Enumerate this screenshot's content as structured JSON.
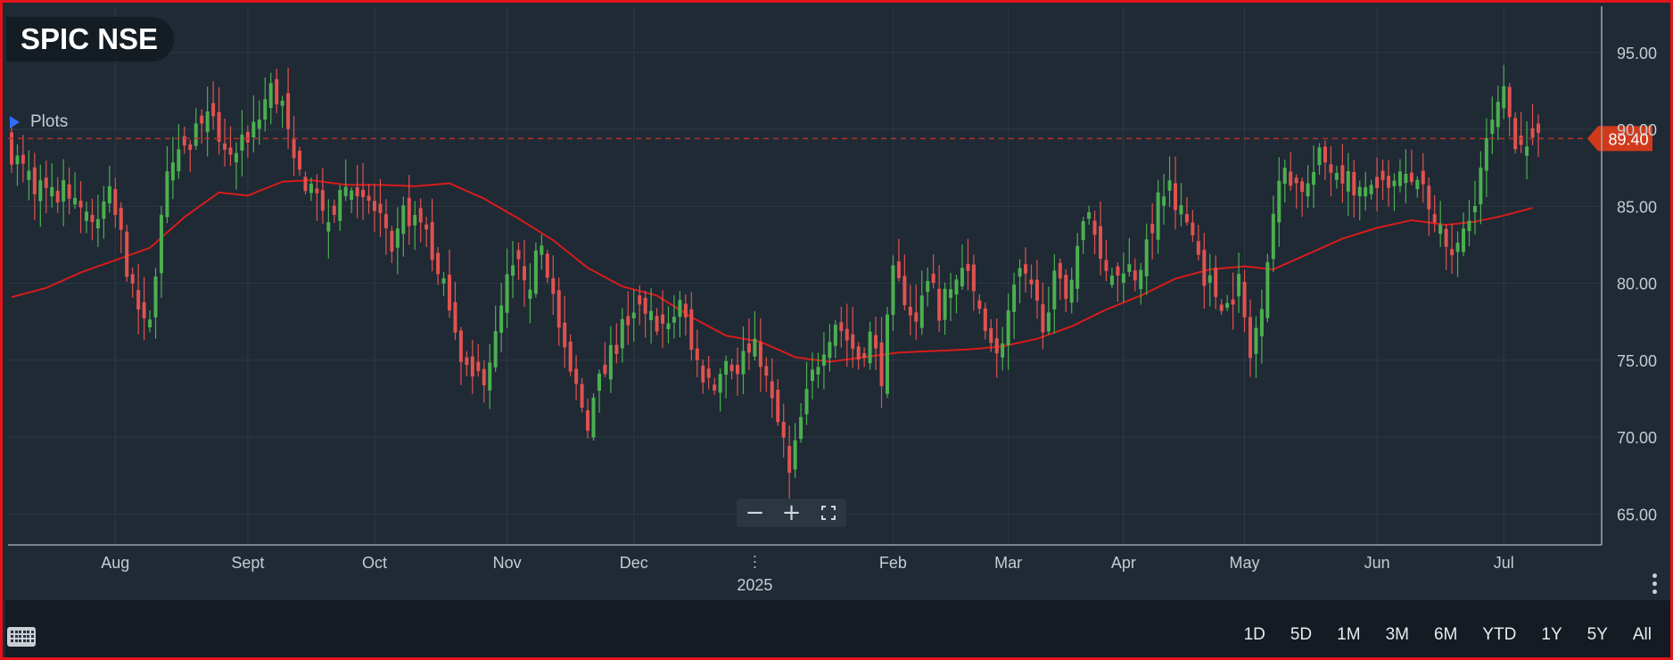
{
  "header": {
    "title": "SPIC NSE"
  },
  "plots_toggle": {
    "label": "Plots"
  },
  "zoom_controls": {
    "zoom_out": "−",
    "zoom_in": "+",
    "fullscreen_icon": "fullscreen-icon"
  },
  "range_buttons": [
    "1D",
    "5D",
    "1M",
    "3M",
    "6M",
    "YTD",
    "1Y",
    "5Y",
    "All"
  ],
  "colors": {
    "background": "#1f2a35",
    "up": "#4caf50",
    "down": "#e0524f",
    "moving_average": "#d81b1b",
    "last_price_line": "#b8302a",
    "last_price_badge": "#d03a1a",
    "grid": "#2d3945"
  },
  "chart_data": {
    "type": "candlestick",
    "ylim": [
      63,
      98
    ],
    "y_ticks": [
      65,
      70,
      75,
      80,
      85,
      90,
      95
    ],
    "y_tick_labels": [
      "65.00",
      "70.00",
      "75.00",
      "80.00",
      "85.00",
      "90.00",
      "95.00"
    ],
    "x_ticks": [
      {
        "label": "Aug",
        "index": 18
      },
      {
        "label": "Sept",
        "index": 41
      },
      {
        "label": "Oct",
        "index": 63
      },
      {
        "label": "Nov",
        "index": 86
      },
      {
        "label": "Dec",
        "index": 108
      },
      {
        "label": "2025",
        "index": 129,
        "year": true
      },
      {
        "label": "Feb",
        "index": 153
      },
      {
        "label": "Mar",
        "index": 173
      },
      {
        "label": "Apr",
        "index": 193
      },
      {
        "label": "May",
        "index": 214
      },
      {
        "label": "Jun",
        "index": 237
      },
      {
        "label": "Jul",
        "index": 259
      }
    ],
    "last_price": 89.4,
    "last_price_label": "89.40",
    "moving_average_anchors": [
      [
        0,
        79.1
      ],
      [
        6,
        79.7
      ],
      [
        12,
        80.7
      ],
      [
        18,
        81.5
      ],
      [
        24,
        82.3
      ],
      [
        30,
        84.3
      ],
      [
        36,
        85.9
      ],
      [
        41,
        85.7
      ],
      [
        47,
        86.6
      ],
      [
        52,
        86.7
      ],
      [
        58,
        86.4
      ],
      [
        64,
        86.4
      ],
      [
        70,
        86.3
      ],
      [
        76,
        86.5
      ],
      [
        82,
        85.5
      ],
      [
        88,
        84.2
      ],
      [
        94,
        82.8
      ],
      [
        100,
        81.0
      ],
      [
        106,
        79.8
      ],
      [
        112,
        79.2
      ],
      [
        118,
        77.8
      ],
      [
        124,
        76.6
      ],
      [
        130,
        76.2
      ],
      [
        136,
        75.2
      ],
      [
        142,
        74.9
      ],
      [
        148,
        75.2
      ],
      [
        154,
        75.5
      ],
      [
        160,
        75.6
      ],
      [
        166,
        75.7
      ],
      [
        172,
        75.9
      ],
      [
        178,
        76.4
      ],
      [
        184,
        77.2
      ],
      [
        190,
        78.3
      ],
      [
        196,
        79.2
      ],
      [
        202,
        80.3
      ],
      [
        208,
        80.9
      ],
      [
        214,
        81.1
      ],
      [
        219,
        80.9
      ],
      [
        225,
        81.9
      ],
      [
        231,
        82.9
      ],
      [
        237,
        83.6
      ],
      [
        243,
        84.1
      ],
      [
        249,
        83.8
      ],
      [
        254,
        84.0
      ],
      [
        259,
        84.4
      ],
      [
        264,
        84.9
      ]
    ],
    "close_anchors": [
      [
        0,
        88.5
      ],
      [
        3,
        86.8
      ],
      [
        7,
        85.6
      ],
      [
        10,
        86.2
      ],
      [
        14,
        84.1
      ],
      [
        17,
        85.6
      ],
      [
        19,
        83.0
      ],
      [
        21,
        79.2
      ],
      [
        23,
        77.1
      ],
      [
        24,
        78.0
      ],
      [
        27,
        87.7
      ],
      [
        30,
        88.2
      ],
      [
        33,
        91.0
      ],
      [
        36,
        89.6
      ],
      [
        39,
        88.1
      ],
      [
        42,
        90.4
      ],
      [
        45,
        92.6
      ],
      [
        47,
        91.6
      ],
      [
        49,
        87.4
      ],
      [
        52,
        86.3
      ],
      [
        55,
        84.1
      ],
      [
        57,
        85.9
      ],
      [
        60,
        86.3
      ],
      [
        62,
        85.1
      ],
      [
        64,
        84.3
      ],
      [
        66,
        81.3
      ],
      [
        68,
        84.6
      ],
      [
        70,
        84.1
      ],
      [
        72,
        83.6
      ],
      [
        74,
        80.3
      ],
      [
        76,
        79.0
      ],
      [
        78,
        75.5
      ],
      [
        80,
        73.6
      ],
      [
        82,
        74.1
      ],
      [
        84,
        76.4
      ],
      [
        86,
        80.1
      ],
      [
        88,
        81.2
      ],
      [
        90,
        80.3
      ],
      [
        92,
        82.5
      ],
      [
        94,
        79.1
      ],
      [
        96,
        75.1
      ],
      [
        98,
        73.1
      ],
      [
        100,
        71.1
      ],
      [
        102,
        73.6
      ],
      [
        104,
        75.2
      ],
      [
        106,
        77.1
      ],
      [
        108,
        78.1
      ],
      [
        110,
        78.3
      ],
      [
        112,
        77.6
      ],
      [
        114,
        76.9
      ],
      [
        116,
        79.1
      ],
      [
        118,
        75.6
      ],
      [
        120,
        74.1
      ],
      [
        122,
        73.2
      ],
      [
        124,
        75.1
      ],
      [
        126,
        74.2
      ],
      [
        128,
        76.1
      ],
      [
        130,
        75.2
      ],
      [
        132,
        72.1
      ],
      [
        134,
        69.6
      ],
      [
        135,
        67.4
      ],
      [
        137,
        71.1
      ],
      [
        139,
        74.0
      ],
      [
        141,
        76.1
      ],
      [
        143,
        77.6
      ],
      [
        145,
        76.4
      ],
      [
        147,
        75.2
      ],
      [
        149,
        76.6
      ],
      [
        151,
        74.1
      ],
      [
        153,
        80.4
      ],
      [
        155,
        79.2
      ],
      [
        157,
        77.3
      ],
      [
        159,
        80.4
      ],
      [
        161,
        78.1
      ],
      [
        163,
        79.6
      ],
      [
        165,
        81.1
      ],
      [
        167,
        79.2
      ],
      [
        169,
        77.6
      ],
      [
        171,
        75.1
      ],
      [
        173,
        78.1
      ],
      [
        175,
        80.6
      ],
      [
        177,
        79.3
      ],
      [
        179,
        77.6
      ],
      [
        181,
        80.1
      ],
      [
        183,
        79.2
      ],
      [
        185,
        82.6
      ],
      [
        187,
        84.5
      ],
      [
        189,
        82.1
      ],
      [
        191,
        80.6
      ],
      [
        193,
        81.3
      ],
      [
        195,
        80.6
      ],
      [
        197,
        82.1
      ],
      [
        199,
        85.6
      ],
      [
        201,
        86.4
      ],
      [
        203,
        84.7
      ],
      [
        205,
        83.1
      ],
      [
        207,
        80.6
      ],
      [
        209,
        79.3
      ],
      [
        211,
        78.6
      ],
      [
        213,
        80.1
      ],
      [
        215,
        75.1
      ],
      [
        217,
        79.1
      ],
      [
        219,
        84.6
      ],
      [
        221,
        87.6
      ],
      [
        223,
        86.4
      ],
      [
        225,
        86.3
      ],
      [
        227,
        88.1
      ],
      [
        229,
        87.6
      ],
      [
        231,
        87.2
      ],
      [
        233,
        86.3
      ],
      [
        235,
        85.7
      ],
      [
        237,
        86.3
      ],
      [
        239,
        85.8
      ],
      [
        241,
        86.9
      ],
      [
        243,
        86.2
      ],
      [
        245,
        86.5
      ],
      [
        247,
        84.6
      ],
      [
        249,
        81.6
      ],
      [
        251,
        82.3
      ],
      [
        253,
        84.1
      ],
      [
        255,
        87.5
      ],
      [
        257,
        90.3
      ],
      [
        259,
        92.1
      ],
      [
        261,
        89.4
      ],
      [
        263,
        89.6
      ],
      [
        264,
        89.4
      ]
    ]
  }
}
